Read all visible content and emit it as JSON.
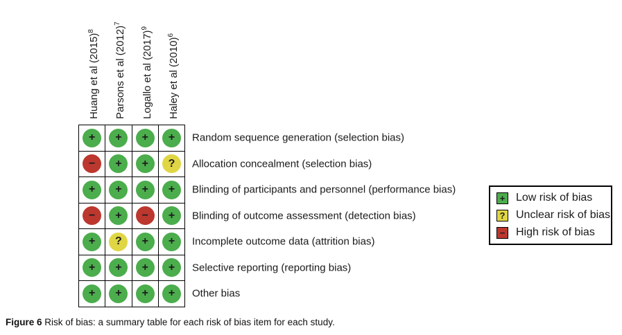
{
  "figure": {
    "caption_label": "Figure 6",
    "caption_text": "Risk of bias: a summary table for each risk of bias item for each study."
  },
  "legend": {
    "items": [
      {
        "symbol": "+",
        "label": "Low risk of bias",
        "judgment": "low"
      },
      {
        "symbol": "?",
        "label": "Unclear risk of bias",
        "judgment": "unclear"
      },
      {
        "symbol": "−",
        "label": "High risk of bias",
        "judgment": "high"
      }
    ]
  },
  "chart_data": {
    "type": "heatmap",
    "title": "Risk of bias summary",
    "columns": [
      {
        "study": "Huang et al (2015)",
        "ref": "8"
      },
      {
        "study": "Parsons et al (2012)",
        "ref": "7"
      },
      {
        "study": "Logallo et al (2017)",
        "ref": "9"
      },
      {
        "study": "Haley et al (2010)",
        "ref": "6"
      }
    ],
    "rows": [
      "Random sequence generation (selection bias)",
      "Allocation concealment (selection bias)",
      "Blinding of participants and personnel (performance bias)",
      "Blinding of outcome assessment (detection bias)",
      "Incomplete outcome data (attrition bias)",
      "Selective reporting (reporting bias)",
      "Other bias"
    ],
    "values": [
      [
        "low",
        "low",
        "low",
        "low"
      ],
      [
        "high",
        "low",
        "low",
        "unclear"
      ],
      [
        "low",
        "low",
        "low",
        "low"
      ],
      [
        "high",
        "low",
        "high",
        "low"
      ],
      [
        "low",
        "unclear",
        "low",
        "low"
      ],
      [
        "low",
        "low",
        "low",
        "low"
      ],
      [
        "low",
        "low",
        "low",
        "low"
      ]
    ],
    "judgment_styles": {
      "low": {
        "symbol": "+",
        "color": "#4bad4c"
      },
      "unclear": {
        "symbol": "?",
        "color": "#e0d644"
      },
      "high": {
        "symbol": "−",
        "color": "#bc372e"
      }
    },
    "legend_position": "right"
  }
}
